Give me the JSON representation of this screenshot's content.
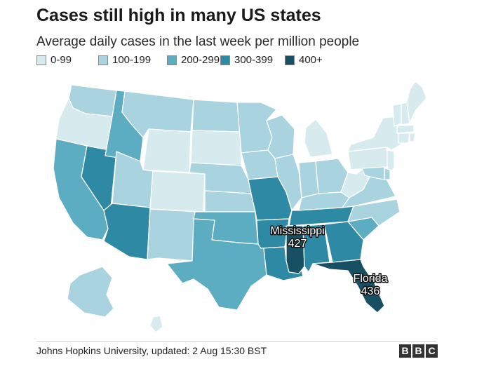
{
  "title": "Cases still high in many US states",
  "subtitle": "Average daily cases in the last week per million people",
  "legend": [
    {
      "label": "0-99",
      "color": "#d7eaee"
    },
    {
      "label": "100-199",
      "color": "#a9d3de"
    },
    {
      "label": "200-299",
      "color": "#5cacc2"
    },
    {
      "label": "300-399",
      "color": "#2d89a4"
    },
    {
      "label": "400+",
      "color": "#174f63"
    }
  ],
  "annotations": [
    {
      "state": "Mississippi",
      "value": "427"
    },
    {
      "state": "Florida",
      "value": "436"
    }
  ],
  "map_data": {
    "metric": "Average daily cases in the last week per million people",
    "bins": [
      "0-99",
      "100-199",
      "200-299",
      "300-399",
      "400+"
    ],
    "labeled_values": {
      "Mississippi": 427,
      "Florida": 436
    },
    "states_by_bin": {
      "0-99": [
        "OR",
        "WY",
        "CO",
        "SD",
        "MI",
        "WV",
        "PA",
        "NY",
        "VT",
        "NH",
        "ME",
        "NJ",
        "CT",
        "MA",
        "RI",
        "HI"
      ],
      "100-199": [
        "WA",
        "MT",
        "ND",
        "MN",
        "WI",
        "IA",
        "NE",
        "KS",
        "IL",
        "IN",
        "OH",
        "KY",
        "VA",
        "NC",
        "NM",
        "UT",
        "AK",
        "MD",
        "DE"
      ],
      "200-299": [
        "CA",
        "ID",
        "TX",
        "OK",
        "SC"
      ],
      "300-399": [
        "NV",
        "AZ",
        "MO",
        "AR",
        "LA",
        "TN",
        "GA",
        "AL"
      ],
      "400+": [
        "MS",
        "FL"
      ]
    }
  },
  "source": "Johns Hopkins University, updated: 2 Aug 15:30 BST",
  "logo": [
    "B",
    "B",
    "C"
  ]
}
